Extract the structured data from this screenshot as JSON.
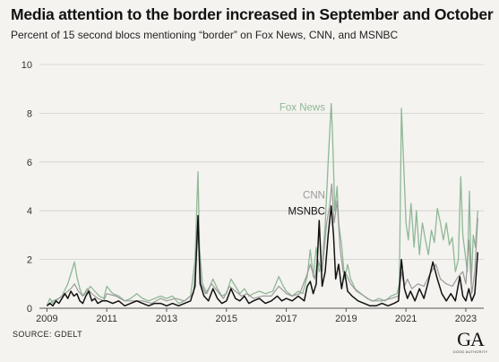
{
  "chart_data": {
    "type": "line",
    "title": "Media attention to the border increased in September and October",
    "subtitle": "Percent of 15 second blocs mentioning “border” on Fox News, CNN, and MSNBC",
    "source": "SOURCE: GDELT",
    "x_ticks": [
      "2009",
      "2011",
      "2013",
      "2015",
      "2017",
      "2019",
      "2021",
      "2023"
    ],
    "y_ticks": [
      0,
      2,
      4,
      6,
      8,
      10
    ],
    "xlim": [
      2008.75,
      2023.6
    ],
    "ylim": [
      0,
      10
    ],
    "grid": "horizontal",
    "legend": "inline labels",
    "series": [
      {
        "name": "Fox News",
        "color": "#8fb897",
        "points": [
          [
            2009,
            0.1
          ],
          [
            2009.1,
            0.4
          ],
          [
            2009.2,
            0.2
          ],
          [
            2009.3,
            0.3
          ],
          [
            2009.5,
            0.5
          ],
          [
            2009.7,
            1.0
          ],
          [
            2009.85,
            1.6
          ],
          [
            2009.92,
            1.9
          ],
          [
            2010,
            1.3
          ],
          [
            2010.1,
            0.8
          ],
          [
            2010.2,
            0.5
          ],
          [
            2010.3,
            0.6
          ],
          [
            2010.45,
            0.9
          ],
          [
            2010.6,
            0.7
          ],
          [
            2010.75,
            0.5
          ],
          [
            2010.9,
            0.4
          ],
          [
            2011,
            0.9
          ],
          [
            2011.2,
            0.6
          ],
          [
            2011.4,
            0.5
          ],
          [
            2011.6,
            0.3
          ],
          [
            2011.8,
            0.4
          ],
          [
            2012,
            0.6
          ],
          [
            2012.2,
            0.4
          ],
          [
            2012.4,
            0.3
          ],
          [
            2012.6,
            0.4
          ],
          [
            2012.8,
            0.5
          ],
          [
            2013,
            0.4
          ],
          [
            2013.2,
            0.5
          ],
          [
            2013.4,
            0.2
          ],
          [
            2013.6,
            0.3
          ],
          [
            2013.8,
            0.5
          ],
          [
            2013.95,
            2.0
          ],
          [
            2014.05,
            5.6
          ],
          [
            2014.1,
            2.5
          ],
          [
            2014.2,
            1.0
          ],
          [
            2014.35,
            0.6
          ],
          [
            2014.55,
            1.2
          ],
          [
            2014.7,
            0.8
          ],
          [
            2014.85,
            0.5
          ],
          [
            2015,
            0.6
          ],
          [
            2015.15,
            1.2
          ],
          [
            2015.3,
            0.9
          ],
          [
            2015.45,
            0.6
          ],
          [
            2015.6,
            0.8
          ],
          [
            2015.75,
            0.5
          ],
          [
            2015.9,
            0.6
          ],
          [
            2016.1,
            0.7
          ],
          [
            2016.3,
            0.6
          ],
          [
            2016.55,
            0.7
          ],
          [
            2016.75,
            1.3
          ],
          [
            2016.9,
            0.9
          ],
          [
            2017,
            0.7
          ],
          [
            2017.2,
            0.5
          ],
          [
            2017.4,
            0.7
          ],
          [
            2017.55,
            0.6
          ],
          [
            2017.7,
            1.3
          ],
          [
            2017.8,
            2.4
          ],
          [
            2017.9,
            1.3
          ],
          [
            2018,
            2.5
          ],
          [
            2018.1,
            1.5
          ],
          [
            2018.2,
            1.8
          ],
          [
            2018.3,
            3.4
          ],
          [
            2018.4,
            6.0
          ],
          [
            2018.5,
            8.4
          ],
          [
            2018.55,
            7.0
          ],
          [
            2018.62,
            4.0
          ],
          [
            2018.7,
            5.0
          ],
          [
            2018.75,
            3.5
          ],
          [
            2018.85,
            2.6
          ],
          [
            2018.95,
            1.2
          ],
          [
            2019.05,
            1.8
          ],
          [
            2019.15,
            1.2
          ],
          [
            2019.3,
            0.8
          ],
          [
            2019.5,
            0.6
          ],
          [
            2019.7,
            0.4
          ],
          [
            2019.9,
            0.3
          ],
          [
            2020.1,
            0.4
          ],
          [
            2020.3,
            0.3
          ],
          [
            2020.5,
            0.5
          ],
          [
            2020.7,
            0.6
          ],
          [
            2020.78,
            1.0
          ],
          [
            2020.85,
            8.2
          ],
          [
            2020.92,
            6.0
          ],
          [
            2021,
            3.5
          ],
          [
            2021.08,
            2.8
          ],
          [
            2021.17,
            4.3
          ],
          [
            2021.27,
            2.5
          ],
          [
            2021.35,
            4.0
          ],
          [
            2021.45,
            2.2
          ],
          [
            2021.55,
            3.5
          ],
          [
            2021.65,
            2.8
          ],
          [
            2021.75,
            2.2
          ],
          [
            2021.85,
            3.2
          ],
          [
            2021.95,
            2.7
          ],
          [
            2022.05,
            4.1
          ],
          [
            2022.15,
            3.5
          ],
          [
            2022.25,
            2.8
          ],
          [
            2022.35,
            3.5
          ],
          [
            2022.45,
            2.6
          ],
          [
            2022.55,
            2.9
          ],
          [
            2022.65,
            1.5
          ],
          [
            2022.75,
            2.0
          ],
          [
            2022.83,
            5.4
          ],
          [
            2022.9,
            3.0
          ],
          [
            2023,
            2.0
          ],
          [
            2023.05,
            1.5
          ],
          [
            2023.12,
            4.8
          ],
          [
            2023.18,
            1.0
          ],
          [
            2023.25,
            3.0
          ],
          [
            2023.32,
            2.5
          ],
          [
            2023.4,
            4.0
          ]
        ]
      },
      {
        "name": "CNN",
        "color": "#9a9a9a",
        "points": [
          [
            2009,
            0.1
          ],
          [
            2009.2,
            0.3
          ],
          [
            2009.4,
            0.4
          ],
          [
            2009.6,
            0.6
          ],
          [
            2009.8,
            0.8
          ],
          [
            2009.92,
            1.0
          ],
          [
            2010.05,
            0.7
          ],
          [
            2010.2,
            0.5
          ],
          [
            2010.35,
            0.8
          ],
          [
            2010.5,
            0.6
          ],
          [
            2010.7,
            0.4
          ],
          [
            2010.9,
            0.3
          ],
          [
            2011,
            0.6
          ],
          [
            2011.3,
            0.5
          ],
          [
            2011.6,
            0.3
          ],
          [
            2011.9,
            0.3
          ],
          [
            2012.2,
            0.3
          ],
          [
            2012.5,
            0.2
          ],
          [
            2012.8,
            0.4
          ],
          [
            2013,
            0.3
          ],
          [
            2013.3,
            0.4
          ],
          [
            2013.6,
            0.3
          ],
          [
            2013.9,
            0.6
          ],
          [
            2014.05,
            3.2
          ],
          [
            2014.15,
            1.0
          ],
          [
            2014.3,
            0.6
          ],
          [
            2014.5,
            1.0
          ],
          [
            2014.7,
            0.7
          ],
          [
            2014.9,
            0.4
          ],
          [
            2015.1,
            0.9
          ],
          [
            2015.3,
            0.7
          ],
          [
            2015.5,
            0.5
          ],
          [
            2015.7,
            0.6
          ],
          [
            2015.9,
            0.4
          ],
          [
            2016.2,
            0.5
          ],
          [
            2016.5,
            0.5
          ],
          [
            2016.75,
            0.9
          ],
          [
            2017,
            0.6
          ],
          [
            2017.2,
            0.5
          ],
          [
            2017.45,
            0.6
          ],
          [
            2017.7,
            1.4
          ],
          [
            2017.8,
            1.8
          ],
          [
            2017.95,
            1.2
          ],
          [
            2018.05,
            2.0
          ],
          [
            2018.2,
            1.5
          ],
          [
            2018.35,
            3.5
          ],
          [
            2018.45,
            4.2
          ],
          [
            2018.52,
            5.1
          ],
          [
            2018.6,
            3.5
          ],
          [
            2018.7,
            4.4
          ],
          [
            2018.8,
            2.4
          ],
          [
            2018.9,
            1.5
          ],
          [
            2019,
            1.4
          ],
          [
            2019.15,
            1.0
          ],
          [
            2019.35,
            0.7
          ],
          [
            2019.6,
            0.5
          ],
          [
            2019.85,
            0.3
          ],
          [
            2020.2,
            0.3
          ],
          [
            2020.5,
            0.4
          ],
          [
            2020.75,
            0.5
          ],
          [
            2020.85,
            1.5
          ],
          [
            2020.95,
            0.9
          ],
          [
            2021.05,
            1.2
          ],
          [
            2021.2,
            0.8
          ],
          [
            2021.4,
            1.0
          ],
          [
            2021.6,
            0.9
          ],
          [
            2021.8,
            1.4
          ],
          [
            2022,
            1.8
          ],
          [
            2022.15,
            1.2
          ],
          [
            2022.35,
            1.0
          ],
          [
            2022.55,
            0.9
          ],
          [
            2022.75,
            1.3
          ],
          [
            2022.9,
            1.5
          ],
          [
            2023,
            1.0
          ],
          [
            2023.1,
            2.8
          ],
          [
            2023.2,
            0.6
          ],
          [
            2023.3,
            1.5
          ],
          [
            2023.4,
            3.7
          ]
        ]
      },
      {
        "name": "MSNBC",
        "color": "#111111",
        "points": [
          [
            2009,
            0.1
          ],
          [
            2009.1,
            0.2
          ],
          [
            2009.2,
            0.1
          ],
          [
            2009.3,
            0.3
          ],
          [
            2009.4,
            0.2
          ],
          [
            2009.5,
            0.4
          ],
          [
            2009.6,
            0.6
          ],
          [
            2009.7,
            0.4
          ],
          [
            2009.8,
            0.7
          ],
          [
            2009.9,
            0.5
          ],
          [
            2010,
            0.6
          ],
          [
            2010.1,
            0.3
          ],
          [
            2010.2,
            0.2
          ],
          [
            2010.3,
            0.5
          ],
          [
            2010.4,
            0.7
          ],
          [
            2010.5,
            0.3
          ],
          [
            2010.6,
            0.4
          ],
          [
            2010.7,
            0.2
          ],
          [
            2010.85,
            0.3
          ],
          [
            2011,
            0.3
          ],
          [
            2011.2,
            0.2
          ],
          [
            2011.4,
            0.3
          ],
          [
            2011.6,
            0.1
          ],
          [
            2011.8,
            0.2
          ],
          [
            2012,
            0.3
          ],
          [
            2012.2,
            0.2
          ],
          [
            2012.4,
            0.1
          ],
          [
            2012.6,
            0.2
          ],
          [
            2012.8,
            0.2
          ],
          [
            2013,
            0.1
          ],
          [
            2013.2,
            0.2
          ],
          [
            2013.4,
            0.1
          ],
          [
            2013.6,
            0.2
          ],
          [
            2013.8,
            0.3
          ],
          [
            2013.95,
            0.9
          ],
          [
            2014.05,
            3.8
          ],
          [
            2014.12,
            1.0
          ],
          [
            2014.25,
            0.5
          ],
          [
            2014.4,
            0.3
          ],
          [
            2014.55,
            0.8
          ],
          [
            2014.7,
            0.4
          ],
          [
            2014.85,
            0.2
          ],
          [
            2015,
            0.3
          ],
          [
            2015.15,
            0.8
          ],
          [
            2015.3,
            0.4
          ],
          [
            2015.45,
            0.3
          ],
          [
            2015.6,
            0.5
          ],
          [
            2015.75,
            0.2
          ],
          [
            2015.9,
            0.3
          ],
          [
            2016.1,
            0.4
          ],
          [
            2016.3,
            0.2
          ],
          [
            2016.5,
            0.3
          ],
          [
            2016.7,
            0.5
          ],
          [
            2016.85,
            0.3
          ],
          [
            2017,
            0.4
          ],
          [
            2017.2,
            0.3
          ],
          [
            2017.4,
            0.5
          ],
          [
            2017.6,
            0.3
          ],
          [
            2017.7,
            0.9
          ],
          [
            2017.8,
            1.1
          ],
          [
            2017.9,
            0.6
          ],
          [
            2018,
            1.0
          ],
          [
            2018.1,
            3.6
          ],
          [
            2018.2,
            0.9
          ],
          [
            2018.3,
            1.5
          ],
          [
            2018.4,
            3.0
          ],
          [
            2018.5,
            4.2
          ],
          [
            2018.58,
            3.0
          ],
          [
            2018.65,
            1.2
          ],
          [
            2018.75,
            1.8
          ],
          [
            2018.85,
            0.8
          ],
          [
            2018.95,
            1.5
          ],
          [
            2019.05,
            0.7
          ],
          [
            2019.2,
            0.5
          ],
          [
            2019.4,
            0.3
          ],
          [
            2019.6,
            0.2
          ],
          [
            2019.8,
            0.1
          ],
          [
            2020,
            0.1
          ],
          [
            2020.2,
            0.2
          ],
          [
            2020.4,
            0.1
          ],
          [
            2020.6,
            0.2
          ],
          [
            2020.75,
            0.3
          ],
          [
            2020.85,
            2.0
          ],
          [
            2020.95,
            0.8
          ],
          [
            2021.05,
            0.4
          ],
          [
            2021.15,
            0.7
          ],
          [
            2021.3,
            0.3
          ],
          [
            2021.45,
            0.8
          ],
          [
            2021.6,
            0.4
          ],
          [
            2021.75,
            1.1
          ],
          [
            2021.9,
            1.9
          ],
          [
            2022.05,
            1.2
          ],
          [
            2022.2,
            0.6
          ],
          [
            2022.35,
            0.3
          ],
          [
            2022.5,
            0.6
          ],
          [
            2022.65,
            0.3
          ],
          [
            2022.8,
            1.3
          ],
          [
            2022.9,
            0.5
          ],
          [
            2023,
            0.3
          ],
          [
            2023.1,
            0.8
          ],
          [
            2023.2,
            0.3
          ],
          [
            2023.3,
            0.6
          ],
          [
            2023.4,
            2.3
          ]
        ]
      }
    ]
  },
  "logo": {
    "mark": "GA",
    "text": "GOOD AUTHORITY"
  }
}
